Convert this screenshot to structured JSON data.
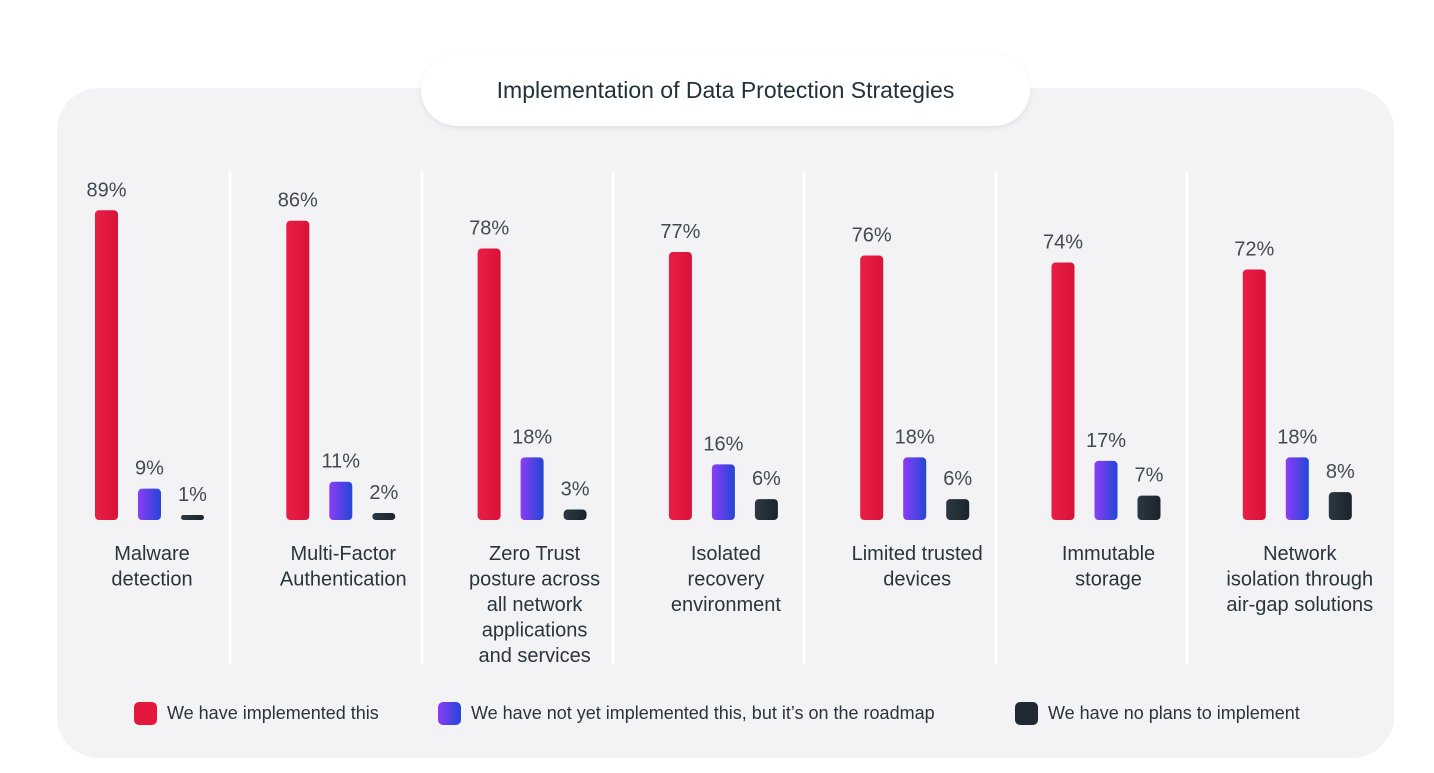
{
  "title": "Implementation of Data Protection Strategies",
  "legend": [
    {
      "label": "We have implemented this",
      "color": "#e4173e"
    },
    {
      "label": "We have not yet implemented this, but it’s on the roadmap",
      "color": "#6a3fe8"
    },
    {
      "label": "We have no plans to implement",
      "color": "#1f2a32"
    }
  ],
  "chart_data": {
    "type": "bar",
    "title": "Implementation of Data Protection Strategies",
    "categories": [
      [
        "Malware",
        "detection"
      ],
      [
        "Multi-Factor",
        "Authentication"
      ],
      [
        "Zero Trust",
        "posture across",
        "all network",
        "applications",
        "and services"
      ],
      [
        "Isolated",
        "recovery",
        "environment"
      ],
      [
        "Limited trusted",
        "devices"
      ],
      [
        "Immutable",
        "storage"
      ],
      [
        "Network",
        "isolation through",
        "air-gap solutions"
      ]
    ],
    "series": [
      {
        "name": "We have implemented this",
        "values": [
          89,
          86,
          78,
          77,
          76,
          74,
          72
        ]
      },
      {
        "name": "We have not yet implemented this, but it’s on the roadmap",
        "values": [
          9,
          11,
          18,
          16,
          18,
          17,
          18
        ]
      },
      {
        "name": "We have no plans to implement",
        "values": [
          1,
          2,
          3,
          6,
          6,
          7,
          8
        ]
      }
    ],
    "value_suffix": "%",
    "ylim": [
      0,
      100
    ],
    "grid": false,
    "legend_position": "bottom"
  }
}
